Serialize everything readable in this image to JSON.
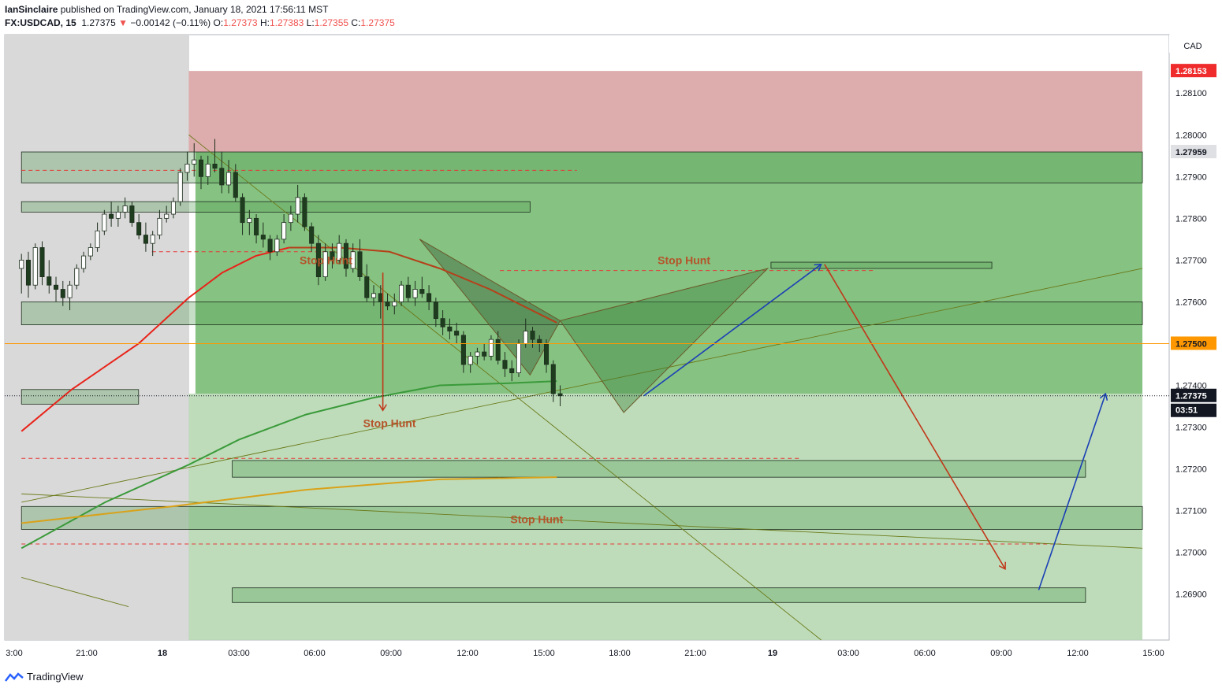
{
  "header": {
    "publisher": "IanSinclaire",
    "published_text": " published on TradingView.com, January 18, 2021 17:56:11 MST",
    "symbol": "FX:USDCAD, 15",
    "last": "1.27375",
    "change_arrow": "▼",
    "change": "−0.00142 (−0.11%)",
    "o_label": "O:",
    "o_value": "1.27373",
    "h_label": "H:",
    "h_value": "1.27383",
    "l_label": "L:",
    "l_value": "1.27355",
    "c_label": "C:",
    "c_value": "1.27375"
  },
  "footer": {
    "brand": "TradingView",
    "icon": "tradingview-logo-icon"
  },
  "colors": {
    "up_candle": "#ffffff",
    "down_candle": "#1e3d1e",
    "red_zone": "#dba9a9",
    "green_zone": "#7fbf7b",
    "ma_red": "#e8231a",
    "ma_green": "#3a9a3a",
    "ma_orange": "#d9a21a",
    "ma_brown": "#b5401a",
    "arrow_red": "#c0381a",
    "arrow_blue": "#1a3fb5",
    "price_marker": "#ff9800",
    "last_price_marker": "#131722"
  },
  "chart_data": {
    "type": "candlestick",
    "currency": "CAD",
    "y_ticks": [
      "1.28100",
      "1.28000",
      "1.27900",
      "1.27800",
      "1.27700",
      "1.27600",
      "1.27500",
      "1.27400",
      "1.27300",
      "1.27200",
      "1.27100",
      "1.27000",
      "1.26900"
    ],
    "x_ticks": [
      "3:00",
      "21:00",
      "18",
      "03:00",
      "06:00",
      "09:00",
      "12:00",
      "15:00",
      "18:00",
      "21:00",
      "19",
      "03:00",
      "06:00",
      "09:00",
      "12:00",
      "15:00"
    ],
    "ylim": [
      1.2679,
      1.2824
    ],
    "price_labels": [
      {
        "value": 1.28153,
        "text": "1.28153",
        "kind": "red"
      },
      {
        "value": 1.27959,
        "text": "1.27959",
        "kind": "gray"
      },
      {
        "value": 1.275,
        "text": "1.27500",
        "kind": "orange"
      },
      {
        "value": 1.27375,
        "text": "1.27375",
        "kind": "dark"
      },
      {
        "countdown": "03:51"
      }
    ],
    "annotations": [
      {
        "text": "Stop Hunt",
        "x": 4.6,
        "y": 1.2769
      },
      {
        "text": "Stop Hunt",
        "x": 15.3,
        "y": 1.2769
      },
      {
        "text": "Stop Hunt",
        "x": 6.5,
        "y": 1.273
      },
      {
        "text": "Stop Hunt",
        "x": 10.9,
        "y": 1.2707
      }
    ],
    "zones": [
      {
        "kind": "red",
        "x1": 0.5,
        "x2": 29,
        "y1": 1.27959,
        "y2": 1.28153
      },
      {
        "kind": "green",
        "x1": 0.7,
        "x2": 29,
        "y1": 1.2738,
        "y2": 1.27959
      },
      {
        "kind": "light",
        "x1": 0.5,
        "x2": 29,
        "y1": 1.2679,
        "y2": 1.2738
      }
    ],
    "boxes": [
      {
        "x1": -4.5,
        "x2": 29,
        "y1": 1.27885,
        "y2": 1.27959
      },
      {
        "x1": -4.5,
        "x2": 10.7,
        "y1": 1.27815,
        "y2": 1.2784
      },
      {
        "x1": -4.5,
        "x2": 29,
        "y1": 1.27545,
        "y2": 1.276
      },
      {
        "x1": -4.5,
        "x2": -1.0,
        "y1": 1.27355,
        "y2": 1.2739
      },
      {
        "x1": 17.9,
        "x2": 24.5,
        "y1": 1.2768,
        "y2": 1.27695
      },
      {
        "x1": 1.8,
        "x2": 27.3,
        "y1": 1.2718,
        "y2": 1.2722
      },
      {
        "x1": -4.5,
        "x2": 29,
        "y1": 1.27055,
        "y2": 1.2711
      },
      {
        "x1": 1.8,
        "x2": 27.3,
        "y1": 1.2688,
        "y2": 1.26915
      }
    ],
    "dashed_levels": [
      {
        "y": 1.27915,
        "x1": -4.5,
        "x2": 12.1
      },
      {
        "y": 1.2772,
        "x1": -0.6,
        "x2": 5.5
      },
      {
        "y": 1.27675,
        "x1": 9.8,
        "x2": 21.0
      },
      {
        "y": 1.27225,
        "x1": -4.5,
        "x2": 18.8
      },
      {
        "y": 1.2702,
        "x1": -4.5,
        "x2": 26.6
      }
    ],
    "ma_series": [
      {
        "color": "ma_red",
        "points": [
          [
            -4.5,
            1.2729
          ],
          [
            -3,
            1.2739
          ],
          [
            -1,
            1.275
          ],
          [
            0.5,
            1.2761
          ],
          [
            1.5,
            1.2767
          ],
          [
            2.5,
            1.2771
          ],
          [
            3.5,
            1.2773
          ]
        ]
      },
      {
        "color": "ma_green",
        "points": [
          [
            -4.5,
            1.2701
          ],
          [
            -2,
            1.2712
          ],
          [
            0.5,
            1.2721
          ],
          [
            2,
            1.2727
          ],
          [
            4,
            1.2733
          ],
          [
            6,
            1.2737
          ],
          [
            8,
            1.274
          ],
          [
            10,
            1.27405
          ],
          [
            11.5,
            1.2741
          ]
        ]
      },
      {
        "color": "ma_orange",
        "points": [
          [
            -4.5,
            1.2707
          ],
          [
            0,
            1.2711
          ],
          [
            4,
            1.2715
          ],
          [
            8,
            1.27175
          ],
          [
            11.5,
            1.2718
          ]
        ]
      },
      {
        "color": "ma_brown",
        "points": [
          [
            3.5,
            1.2773
          ],
          [
            5,
            1.2773
          ],
          [
            6.5,
            1.2772
          ],
          [
            8,
            1.2768
          ],
          [
            9.5,
            1.2763
          ],
          [
            10.5,
            1.2759
          ],
          [
            11.5,
            1.2755
          ]
        ]
      }
    ],
    "trend_lines": [
      {
        "points": [
          [
            -4.5,
            1.2712
          ],
          [
            29,
            1.2768
          ]
        ]
      },
      {
        "points": [
          [
            -4.5,
            1.2714
          ],
          [
            29,
            1.2701
          ]
        ]
      },
      {
        "points": [
          [
            -4.5,
            1.2694
          ],
          [
            -1.3,
            1.2687
          ]
        ]
      },
      {
        "points": [
          [
            0.5,
            1.28
          ],
          [
            19.4,
            1.2679
          ]
        ]
      }
    ],
    "harmonic_pattern": {
      "X": [
        7.4,
        1.2775
      ],
      "A": [
        10.7,
        1.27425
      ],
      "B": [
        11.6,
        1.27555
      ],
      "C": [
        13.5,
        1.27335
      ],
      "D": [
        17.8,
        1.2768
      ]
    },
    "arrows": [
      {
        "color": "arrow_red",
        "from": [
          6.3,
          1.2767
        ],
        "to": [
          6.3,
          1.2734
        ]
      },
      {
        "color": "arrow_blue",
        "from": [
          14.1,
          1.27375
        ],
        "to": [
          19.4,
          1.2769
        ]
      },
      {
        "color": "arrow_red",
        "from": [
          19.5,
          1.2769
        ],
        "to": [
          24.9,
          1.2696
        ]
      },
      {
        "color": "arrow_blue",
        "from": [
          25.9,
          1.2691
        ],
        "to": [
          27.9,
          1.2738
        ]
      }
    ],
    "candles": [
      [
        1.2768,
        1.27715,
        1.2762,
        1.277
      ],
      [
        1.277,
        1.2772,
        1.2761,
        1.2764
      ],
      [
        1.2764,
        1.2774,
        1.2763,
        1.2773
      ],
      [
        1.2773,
        1.27745,
        1.2764,
        1.2766
      ],
      [
        1.2766,
        1.277,
        1.2762,
        1.2764
      ],
      [
        1.2764,
        1.2766,
        1.276,
        1.2763
      ],
      [
        1.2763,
        1.2765,
        1.2759,
        1.2761
      ],
      [
        1.2761,
        1.2765,
        1.2758,
        1.2764
      ],
      [
        1.2764,
        1.2769,
        1.2763,
        1.2768
      ],
      [
        1.2768,
        1.2772,
        1.2767,
        1.2771
      ],
      [
        1.2771,
        1.2774,
        1.277,
        1.2773
      ],
      [
        1.2773,
        1.2779,
        1.2772,
        1.2777
      ],
      [
        1.2777,
        1.2782,
        1.2776,
        1.2781
      ],
      [
        1.2781,
        1.2784,
        1.2778,
        1.278
      ],
      [
        1.278,
        1.2783,
        1.2778,
        1.27815
      ],
      [
        1.27815,
        1.2785,
        1.278,
        1.2783
      ],
      [
        1.2783,
        1.2784,
        1.2778,
        1.2779
      ],
      [
        1.2779,
        1.2781,
        1.2775,
        1.2776
      ],
      [
        1.2776,
        1.2779,
        1.2772,
        1.2774
      ],
      [
        1.2774,
        1.2777,
        1.2771,
        1.2776
      ],
      [
        1.2776,
        1.2782,
        1.2775,
        1.278
      ],
      [
        1.278,
        1.2783,
        1.2779,
        1.2781
      ],
      [
        1.2781,
        1.2785,
        1.278,
        1.2784
      ],
      [
        1.2784,
        1.2792,
        1.2783,
        1.2791
      ],
      [
        1.2791,
        1.2796,
        1.2789,
        1.2793
      ],
      [
        1.2793,
        1.2798,
        1.279,
        1.2794
      ],
      [
        1.2794,
        1.2795,
        1.2787,
        1.279
      ],
      [
        1.279,
        1.2795,
        1.2788,
        1.2793
      ],
      [
        1.2793,
        1.2799,
        1.2791,
        1.2792
      ],
      [
        1.2792,
        1.2796,
        1.2786,
        1.2788
      ],
      [
        1.2788,
        1.2794,
        1.2786,
        1.2791
      ],
      [
        1.2791,
        1.2793,
        1.2784,
        1.2785
      ],
      [
        1.2785,
        1.2786,
        1.2776,
        1.2779
      ],
      [
        1.2779,
        1.2782,
        1.2776,
        1.278
      ],
      [
        1.278,
        1.2781,
        1.2774,
        1.2776
      ],
      [
        1.2776,
        1.2779,
        1.2773,
        1.2775
      ],
      [
        1.2775,
        1.2776,
        1.277,
        1.2772
      ],
      [
        1.2772,
        1.2776,
        1.2771,
        1.2775
      ],
      [
        1.2775,
        1.2781,
        1.2774,
        1.2779
      ],
      [
        1.2779,
        1.2783,
        1.2777,
        1.2781
      ],
      [
        1.2781,
        1.2788,
        1.2779,
        1.2785
      ],
      [
        1.2785,
        1.2786,
        1.2777,
        1.2778
      ],
      [
        1.2778,
        1.2779,
        1.2772,
        1.2774
      ],
      [
        1.2774,
        1.2776,
        1.2764,
        1.2766
      ],
      [
        1.2766,
        1.2774,
        1.2765,
        1.2772
      ],
      [
        1.2772,
        1.2774,
        1.2768,
        1.277
      ],
      [
        1.277,
        1.2776,
        1.2769,
        1.2774
      ],
      [
        1.2774,
        1.2775,
        1.2766,
        1.2768
      ],
      [
        1.2768,
        1.2774,
        1.2767,
        1.2772
      ],
      [
        1.2772,
        1.2775,
        1.2765,
        1.2766
      ],
      [
        1.2766,
        1.2769,
        1.276,
        1.2761
      ],
      [
        1.2761,
        1.2764,
        1.2759,
        1.2762
      ],
      [
        1.2762,
        1.2764,
        1.2756,
        1.276
      ],
      [
        1.276,
        1.2762,
        1.2758,
        1.2759
      ],
      [
        1.2759,
        1.2762,
        1.2757,
        1.276
      ],
      [
        1.276,
        1.2765,
        1.2759,
        1.2764
      ],
      [
        1.2764,
        1.2766,
        1.276,
        1.2761
      ],
      [
        1.2761,
        1.2765,
        1.2759,
        1.2763
      ],
      [
        1.2763,
        1.2766,
        1.2761,
        1.2762
      ],
      [
        1.2762,
        1.2764,
        1.2758,
        1.276
      ],
      [
        1.276,
        1.2761,
        1.2754,
        1.2756
      ],
      [
        1.2756,
        1.2758,
        1.2752,
        1.2754
      ],
      [
        1.2754,
        1.2756,
        1.2751,
        1.2753
      ],
      [
        1.2753,
        1.2755,
        1.275,
        1.2752
      ],
      [
        1.2752,
        1.2753,
        1.2743,
        1.2745
      ],
      [
        1.2745,
        1.2748,
        1.2743,
        1.2747
      ],
      [
        1.2747,
        1.2749,
        1.2745,
        1.2748
      ],
      [
        1.2748,
        1.275,
        1.2746,
        1.2747
      ],
      [
        1.2747,
        1.2752,
        1.2746,
        1.2751
      ],
      [
        1.2751,
        1.2753,
        1.2745,
        1.2746
      ],
      [
        1.2746,
        1.2748,
        1.2742,
        1.2744
      ],
      [
        1.2744,
        1.2746,
        1.2741,
        1.2743
      ],
      [
        1.2743,
        1.2751,
        1.2742,
        1.275
      ],
      [
        1.275,
        1.2756,
        1.2749,
        1.2753
      ],
      [
        1.2753,
        1.2754,
        1.2749,
        1.2751
      ],
      [
        1.2751,
        1.2752,
        1.2748,
        1.275
      ],
      [
        1.275,
        1.2751,
        1.2743,
        1.2745
      ],
      [
        1.2745,
        1.2746,
        1.2736,
        1.2738
      ],
      [
        1.2738,
        1.274,
        1.2735,
        1.27375
      ]
    ],
    "candle_x_range": [
      -4.5,
      11.6
    ]
  }
}
